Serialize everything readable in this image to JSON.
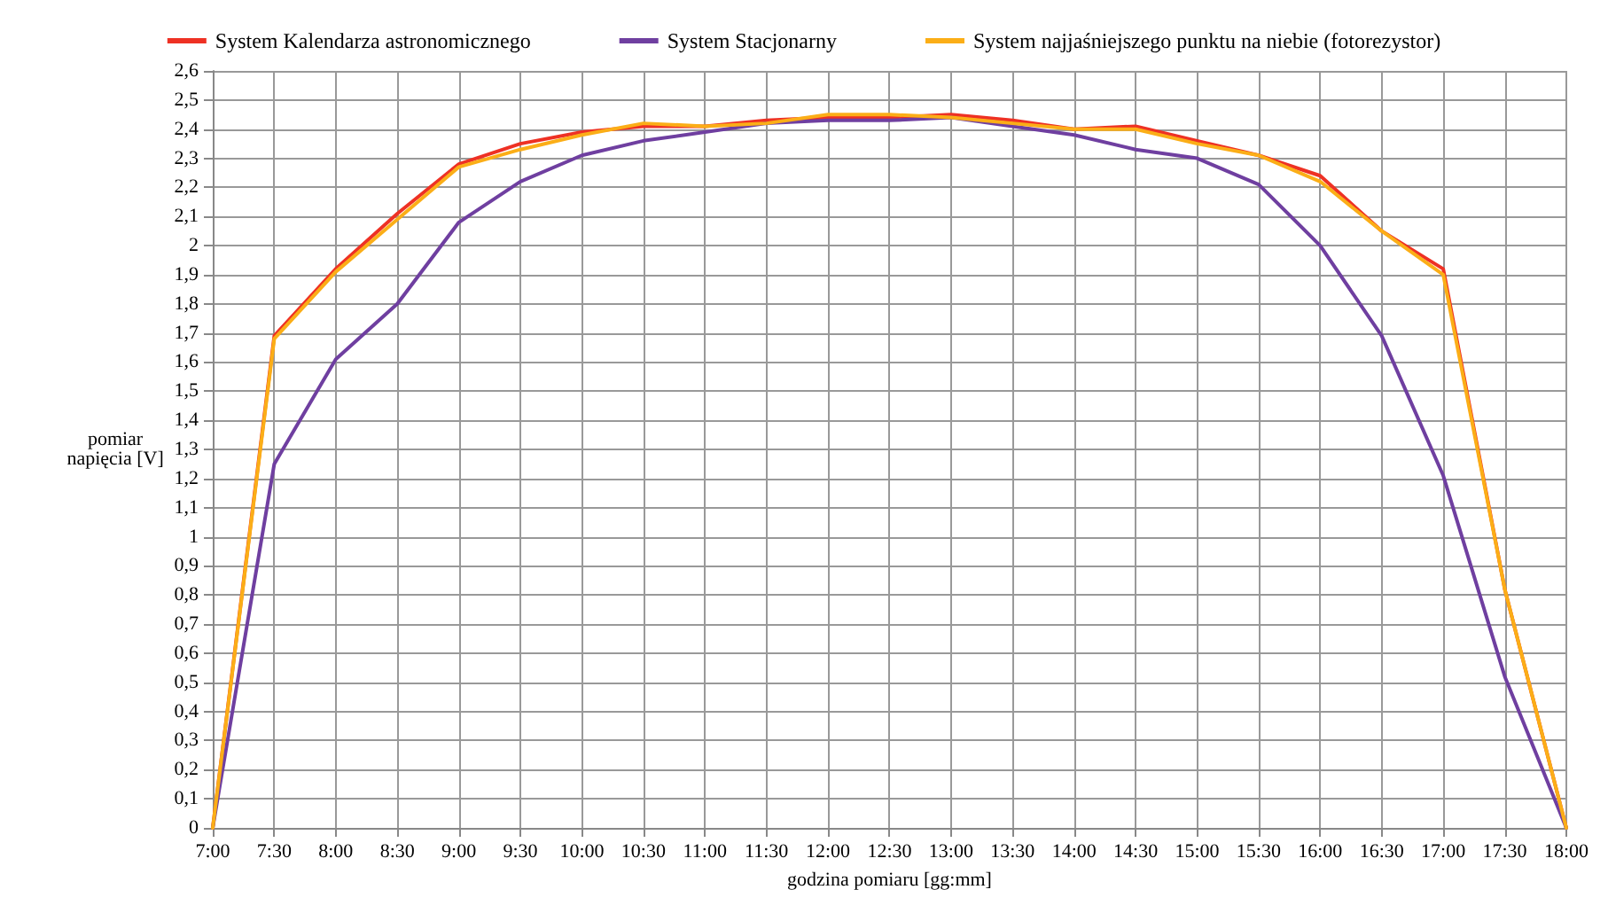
{
  "chart_data": {
    "type": "line",
    "xlabel": "godzina pomiaru [gg:mm]",
    "ylabel": "pomiar\nnapięcia [V]",
    "categories": [
      "7:00",
      "7:30",
      "8:00",
      "8:30",
      "9:00",
      "9:30",
      "10:00",
      "10:30",
      "11:00",
      "11:30",
      "12:00",
      "12:30",
      "13:00",
      "13:30",
      "14:00",
      "14:30",
      "15:00",
      "15:30",
      "16:00",
      "16:30",
      "17:00",
      "17:30",
      "18:00"
    ],
    "series": [
      {
        "name": "System Kalendarza astronomicznego",
        "color": "#ee3124",
        "values": [
          0,
          1.69,
          1.92,
          2.11,
          2.28,
          2.35,
          2.39,
          2.41,
          2.41,
          2.43,
          2.44,
          2.44,
          2.45,
          2.43,
          2.4,
          2.41,
          2.36,
          2.31,
          2.24,
          2.05,
          1.92,
          0.82,
          0
        ]
      },
      {
        "name": "System Stacjonarny",
        "color": "#6f3fa0",
        "values": [
          0,
          1.25,
          1.61,
          1.8,
          2.08,
          2.22,
          2.31,
          2.36,
          2.39,
          2.42,
          2.43,
          2.43,
          2.44,
          2.41,
          2.38,
          2.33,
          2.3,
          2.21,
          2.0,
          1.69,
          1.21,
          0.52,
          0
        ]
      },
      {
        "name": "System najjaśniejszego punktu na niebie (fotorezystor)",
        "color": "#fbae17",
        "values": [
          0,
          1.68,
          1.91,
          2.09,
          2.27,
          2.33,
          2.38,
          2.42,
          2.41,
          2.42,
          2.45,
          2.45,
          2.44,
          2.42,
          2.4,
          2.4,
          2.35,
          2.31,
          2.22,
          2.05,
          1.9,
          0.82,
          0
        ]
      }
    ],
    "ylim": [
      0,
      2.6
    ],
    "yticks": [
      0,
      {
        "value": 0.1,
        "label": "0,1"
      },
      {
        "value": 0.2,
        "label": "0,2"
      },
      {
        "value": 0.3,
        "label": "0,3"
      },
      {
        "value": 0.4,
        "label": "0,4"
      },
      {
        "value": 0.5,
        "label": "0,5"
      },
      {
        "value": 0.6,
        "label": "0,6"
      },
      {
        "value": 0.7,
        "label": "0,7"
      },
      {
        "value": 0.8,
        "label": "0,8"
      },
      {
        "value": 0.9,
        "label": "0,9"
      },
      1,
      {
        "value": 1.1,
        "label": "1,1"
      },
      {
        "value": 1.2,
        "label": "1,2"
      },
      {
        "value": 1.3,
        "label": "1,3"
      },
      {
        "value": 1.4,
        "label": "1,4"
      },
      {
        "value": 1.5,
        "label": "1,5"
      },
      {
        "value": 1.6,
        "label": "1,6"
      },
      {
        "value": 1.7,
        "label": "1,7"
      },
      {
        "value": 1.8,
        "label": "1,8"
      },
      {
        "value": 1.9,
        "label": "1,9"
      },
      2,
      {
        "value": 2.1,
        "label": "2,1"
      },
      {
        "value": 2.2,
        "label": "2,2"
      },
      {
        "value": 2.3,
        "label": "2,3"
      },
      {
        "value": 2.4,
        "label": "2,4"
      },
      {
        "value": 2.5,
        "label": "2,5"
      },
      {
        "value": 2.6,
        "label": "2,6"
      }
    ],
    "grid": true,
    "legend": "top",
    "marker": "none",
    "line_style": "solid"
  }
}
